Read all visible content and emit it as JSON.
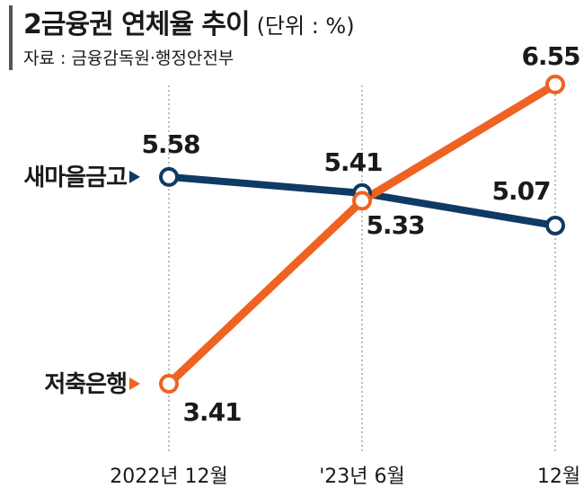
{
  "header": {
    "title": "2금융권 연체율 추이",
    "unit": "(단위 : %)",
    "source": "자료 : 금융감독원·행정안전부"
  },
  "chart_data": {
    "type": "line",
    "title": "2금융권 연체율 추이",
    "unit": "%",
    "categories": [
      "2022년 12월",
      "'23년 6월",
      "12월"
    ],
    "series": [
      {
        "name": "새마을금고",
        "values": [
          5.58,
          5.41,
          5.07
        ],
        "color": "#0f3a63"
      },
      {
        "name": "저축은행",
        "values": [
          3.41,
          5.33,
          6.55
        ],
        "color": "#ee6322"
      }
    ],
    "grid": "vertical dotted lines at each category",
    "legend": "left, next to each line's start"
  }
}
